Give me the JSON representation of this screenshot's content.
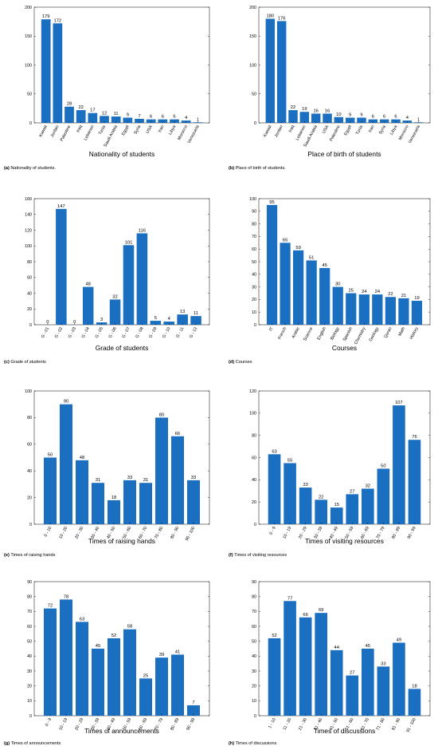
{
  "chart_data": [
    {
      "type": "bar",
      "caption_letter": "(a)",
      "caption": "Nationality of students.",
      "xlabel": "Nationality of students",
      "ylabel": "",
      "ylim": [
        0,
        200
      ],
      "yticks": [
        0,
        50,
        100,
        150,
        200
      ],
      "categories": [
        "Kuwait",
        "Jordan",
        "Palestine",
        "Iraq",
        "Lebanon",
        "Tunis",
        "Saudi Arabia",
        "Egypt",
        "Syria",
        "USA",
        "Iran",
        "Libya",
        "Morocco",
        "Venezuela"
      ],
      "values": [
        179,
        172,
        28,
        22,
        17,
        12,
        11,
        9,
        7,
        6,
        6,
        6,
        4,
        1
      ],
      "color": "#1a6fc0"
    },
    {
      "type": "bar",
      "caption_letter": "(b)",
      "caption": "Place of birth of students.",
      "xlabel": "Place of birth of students",
      "ylabel": "",
      "ylim": [
        0,
        200
      ],
      "yticks": [
        0,
        50,
        100,
        150,
        200
      ],
      "categories": [
        "Kuwait",
        "Jordan",
        "Iraq",
        "Lebanon",
        "Saudi Arabia",
        "USA",
        "Palestine",
        "Egypt",
        "Tunis",
        "Iran",
        "Syria",
        "Libya",
        "Morocco",
        "Venezuela"
      ],
      "values": [
        180,
        176,
        22,
        19,
        16,
        16,
        10,
        9,
        9,
        6,
        6,
        6,
        4,
        1
      ],
      "color": "#1a6fc0"
    },
    {
      "type": "bar",
      "caption_letter": "(c)",
      "caption": "Grade of students",
      "xlabel": "Grade of students",
      "ylabel": "",
      "ylim": [
        0,
        160
      ],
      "yticks": [
        0,
        20,
        40,
        60,
        80,
        100,
        120,
        140,
        160
      ],
      "categories": [
        "G - 01",
        "G - 02",
        "G - 03",
        "G - 04",
        "G - 05",
        "G - 06",
        "G - 07",
        "G - 08",
        "G - 09",
        "G - 10",
        "G - 11",
        "G - 12"
      ],
      "values": [
        0,
        147,
        0,
        48,
        3,
        32,
        101,
        116,
        5,
        4,
        13,
        11
      ],
      "color": "#1a6fc0"
    },
    {
      "type": "bar",
      "caption_letter": "(d)",
      "caption": "Courses",
      "xlabel": "Courses",
      "ylabel": "",
      "ylim": [
        0,
        100
      ],
      "yticks": [
        0,
        10,
        20,
        30,
        40,
        50,
        60,
        70,
        80,
        90,
        100
      ],
      "categories": [
        "IT",
        "French",
        "Arabic",
        "Science",
        "English",
        "Biology",
        "Spanish",
        "Chemistry",
        "Geology",
        "Quran",
        "Math",
        "History"
      ],
      "values": [
        95,
        65,
        59,
        51,
        45,
        30,
        25,
        24,
        24,
        22,
        21,
        19
      ],
      "color": "#1a6fc0"
    },
    {
      "type": "bar",
      "caption_letter": "(e)",
      "caption": "Times of raising hands",
      "xlabel": "Times of raising hands",
      "ylabel": "",
      "ylim": [
        0,
        100
      ],
      "yticks": [
        0,
        20,
        40,
        60,
        80,
        100
      ],
      "categories": [
        "0 - 10",
        "10 - 20",
        "20 - 30",
        "30 - 40",
        "40 - 50",
        "50 - 60",
        "60 - 70",
        "70 - 80",
        "80 - 90",
        "90 - 100"
      ],
      "values": [
        50,
        90,
        48,
        31,
        18,
        33,
        31,
        80,
        66,
        33
      ],
      "color": "#1a6fc0"
    },
    {
      "type": "bar",
      "caption_letter": "(f)",
      "caption": "Times of visiting resources",
      "xlabel": "Times of visiting resources",
      "ylabel": "",
      "ylim": [
        0,
        120
      ],
      "yticks": [
        0,
        20,
        40,
        60,
        80,
        100,
        120
      ],
      "categories": [
        "0 - 9",
        "10 - 19",
        "20 - 29",
        "30 - 39",
        "40 - 49",
        "50 - 59",
        "60 - 69",
        "70 - 79",
        "80 - 89",
        "90 - 99"
      ],
      "values": [
        63,
        55,
        33,
        22,
        15,
        27,
        32,
        50,
        107,
        76
      ],
      "color": "#1a6fc0"
    },
    {
      "type": "bar",
      "caption_letter": "(g)",
      "caption": "Times of announcements",
      "xlabel": "Times of announcements",
      "ylabel": "",
      "ylim": [
        0,
        90
      ],
      "yticks": [
        0,
        10,
        20,
        30,
        40,
        50,
        60,
        70,
        80,
        90
      ],
      "categories": [
        "0 - 9",
        "10 - 19",
        "20 - 29",
        "30 - 39",
        "40 - 49",
        "50 - 59",
        "60 - 69",
        "70 - 79",
        "80 - 89",
        "90 - 99"
      ],
      "values": [
        72,
        78,
        63,
        45,
        52,
        58,
        25,
        39,
        41,
        7
      ],
      "color": "#1a6fc0"
    },
    {
      "type": "bar",
      "caption_letter": "(h)",
      "caption": "Times of discussions",
      "xlabel": "Times of discussions",
      "ylabel": "",
      "ylim": [
        0,
        90
      ],
      "yticks": [
        0,
        10,
        20,
        30,
        40,
        50,
        60,
        70,
        80,
        90
      ],
      "categories": [
        "1 - 10",
        "11 - 20",
        "21 - 30",
        "31 - 40",
        "41 - 50",
        "51 - 60",
        "61 - 70",
        "71 - 80",
        "81 - 90",
        "91 - 100"
      ],
      "values": [
        52,
        77,
        66,
        69,
        44,
        27,
        45,
        33,
        49,
        18
      ],
      "color": "#1a6fc0"
    }
  ]
}
